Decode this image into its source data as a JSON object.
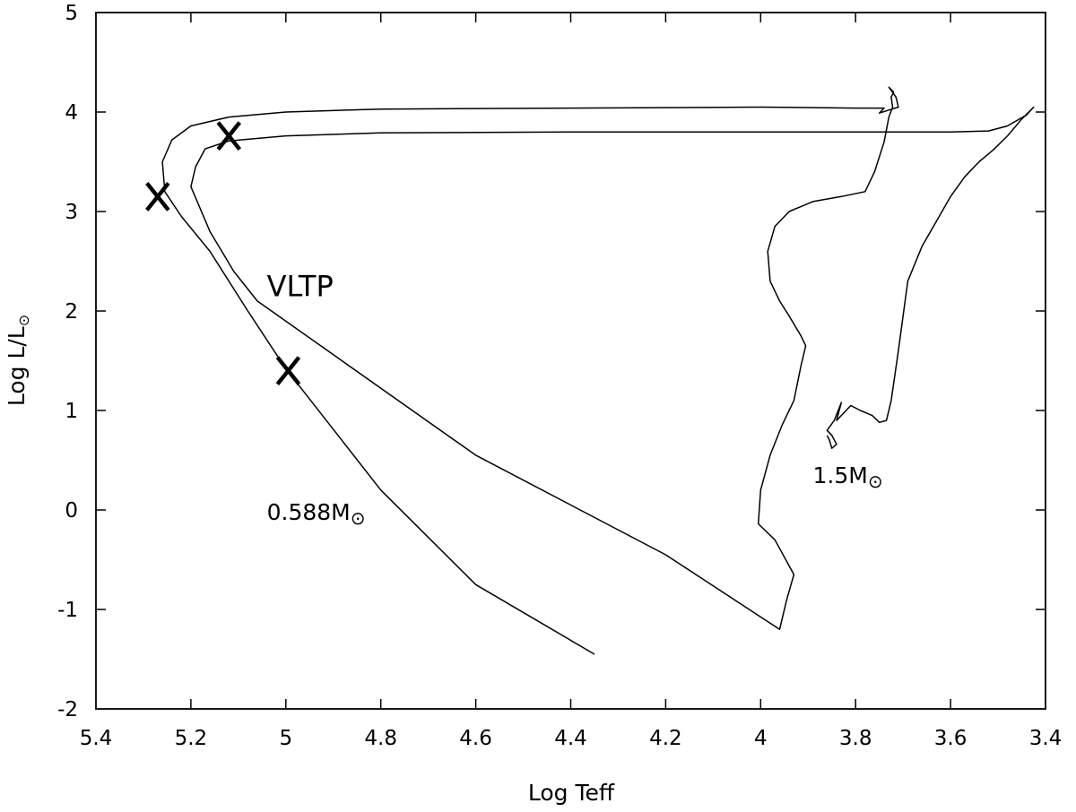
{
  "chart_data": {
    "type": "line",
    "title": "",
    "xlabel": "Log Teff",
    "ylabel": "Log L/L",
    "ylabel_symbol": "⊙",
    "xlim": [
      5.4,
      3.4
    ],
    "ylim": [
      -2,
      5
    ],
    "x_reversed": true,
    "x_ticks": [
      5.4,
      5.2,
      5.0,
      4.8,
      4.6,
      4.4,
      4.2,
      4.0,
      3.8,
      3.6,
      3.4
    ],
    "x_tick_labels": [
      "5.4",
      "5.2",
      "5",
      "4.8",
      "4.6",
      "4.4",
      "4.2",
      "4",
      "3.8",
      "3.6",
      "3.4"
    ],
    "y_ticks": [
      -2,
      -1,
      0,
      1,
      2,
      3,
      4,
      5
    ],
    "y_tick_labels": [
      "-2",
      "-1",
      "0",
      "1",
      "2",
      "3",
      "4",
      "5"
    ],
    "grid": false,
    "color": "#000000",
    "series": [
      {
        "points": [
          [
            3.86,
            0.75
          ],
          [
            3.855,
            0.7
          ],
          [
            3.85,
            0.62
          ],
          [
            3.84,
            0.66
          ],
          [
            3.85,
            0.75
          ],
          [
            3.86,
            0.8
          ],
          [
            3.845,
            0.9
          ],
          [
            3.83,
            1.08
          ],
          [
            3.84,
            0.9
          ],
          [
            3.82,
            1.0
          ],
          [
            3.81,
            1.05
          ],
          [
            3.79,
            1.0
          ],
          [
            3.765,
            0.95
          ],
          [
            3.75,
            0.88
          ],
          [
            3.735,
            0.9
          ],
          [
            3.725,
            1.1
          ],
          [
            3.71,
            1.6
          ],
          [
            3.69,
            2.3
          ],
          [
            3.66,
            2.65
          ],
          [
            3.63,
            2.9
          ],
          [
            3.6,
            3.15
          ],
          [
            3.57,
            3.35
          ],
          [
            3.54,
            3.5
          ],
          [
            3.51,
            3.62
          ],
          [
            3.48,
            3.76
          ],
          [
            3.45,
            3.93
          ],
          [
            3.425,
            4.05
          ],
          [
            3.44,
            3.97
          ],
          [
            3.48,
            3.86
          ],
          [
            3.52,
            3.81
          ],
          [
            3.6,
            3.8
          ],
          [
            3.7,
            3.8
          ],
          [
            3.8,
            3.8
          ],
          [
            4.0,
            3.8
          ],
          [
            4.4,
            3.8
          ],
          [
            4.8,
            3.79
          ],
          [
            5.0,
            3.76
          ],
          [
            5.12,
            3.71
          ],
          [
            5.17,
            3.63
          ],
          [
            5.19,
            3.45
          ],
          [
            5.2,
            3.25
          ],
          [
            5.16,
            2.8
          ],
          [
            5.11,
            2.4
          ],
          [
            5.06,
            2.1
          ],
          [
            4.6,
            0.55
          ],
          [
            4.2,
            -0.45
          ],
          [
            3.96,
            -1.2
          ],
          [
            3.945,
            -0.9
          ],
          [
            3.93,
            -0.65
          ],
          [
            3.97,
            -0.3
          ],
          [
            4.005,
            -0.14
          ],
          [
            4.0,
            0.2
          ],
          [
            3.98,
            0.55
          ],
          [
            3.955,
            0.85
          ],
          [
            3.93,
            1.1
          ],
          [
            3.915,
            1.45
          ],
          [
            3.905,
            1.65
          ],
          [
            3.915,
            1.75
          ],
          [
            3.94,
            1.95
          ],
          [
            3.96,
            2.1
          ],
          [
            3.98,
            2.3
          ],
          [
            3.985,
            2.6
          ],
          [
            3.97,
            2.85
          ],
          [
            3.94,
            3.0
          ],
          [
            3.89,
            3.1
          ],
          [
            3.83,
            3.15
          ],
          [
            3.78,
            3.2
          ],
          [
            3.76,
            3.4
          ],
          [
            3.74,
            3.7
          ],
          [
            3.73,
            3.95
          ],
          [
            3.722,
            4.05
          ],
          [
            3.725,
            4.15
          ],
          [
            3.72,
            4.2
          ],
          [
            3.73,
            4.25
          ],
          [
            3.715,
            4.15
          ],
          [
            3.71,
            4.05
          ],
          [
            3.73,
            4.02
          ],
          [
            3.75,
            3.99
          ],
          [
            3.74,
            4.04
          ],
          [
            3.8,
            4.04
          ],
          [
            4.0,
            4.05
          ],
          [
            4.4,
            4.04
          ],
          [
            4.8,
            4.03
          ],
          [
            5.0,
            4.0
          ],
          [
            5.12,
            3.95
          ],
          [
            5.2,
            3.86
          ],
          [
            5.24,
            3.72
          ],
          [
            5.26,
            3.5
          ],
          [
            5.255,
            3.2
          ],
          [
            5.22,
            2.95
          ],
          [
            5.16,
            2.6
          ],
          [
            5.08,
            2.0
          ],
          [
            5.0,
            1.42
          ],
          [
            4.8,
            0.2
          ],
          [
            4.6,
            -0.75
          ],
          [
            4.35,
            -1.45
          ]
        ]
      }
    ],
    "markers": [
      {
        "label": "X",
        "x": 5.27,
        "y": 3.15
      },
      {
        "label": "X",
        "x": 5.12,
        "y": 3.76
      },
      {
        "label": "X",
        "x": 4.995,
        "y": 1.4
      }
    ],
    "annotations": [
      {
        "text": "VLTP",
        "sub": "",
        "x": 5.04,
        "y": 2.15
      },
      {
        "text": "0.588M",
        "sub": "⊙",
        "x": 5.04,
        "y": -0.1
      },
      {
        "text": "1.5M",
        "sub": "⊙",
        "x": 3.89,
        "y": 0.27
      }
    ]
  }
}
